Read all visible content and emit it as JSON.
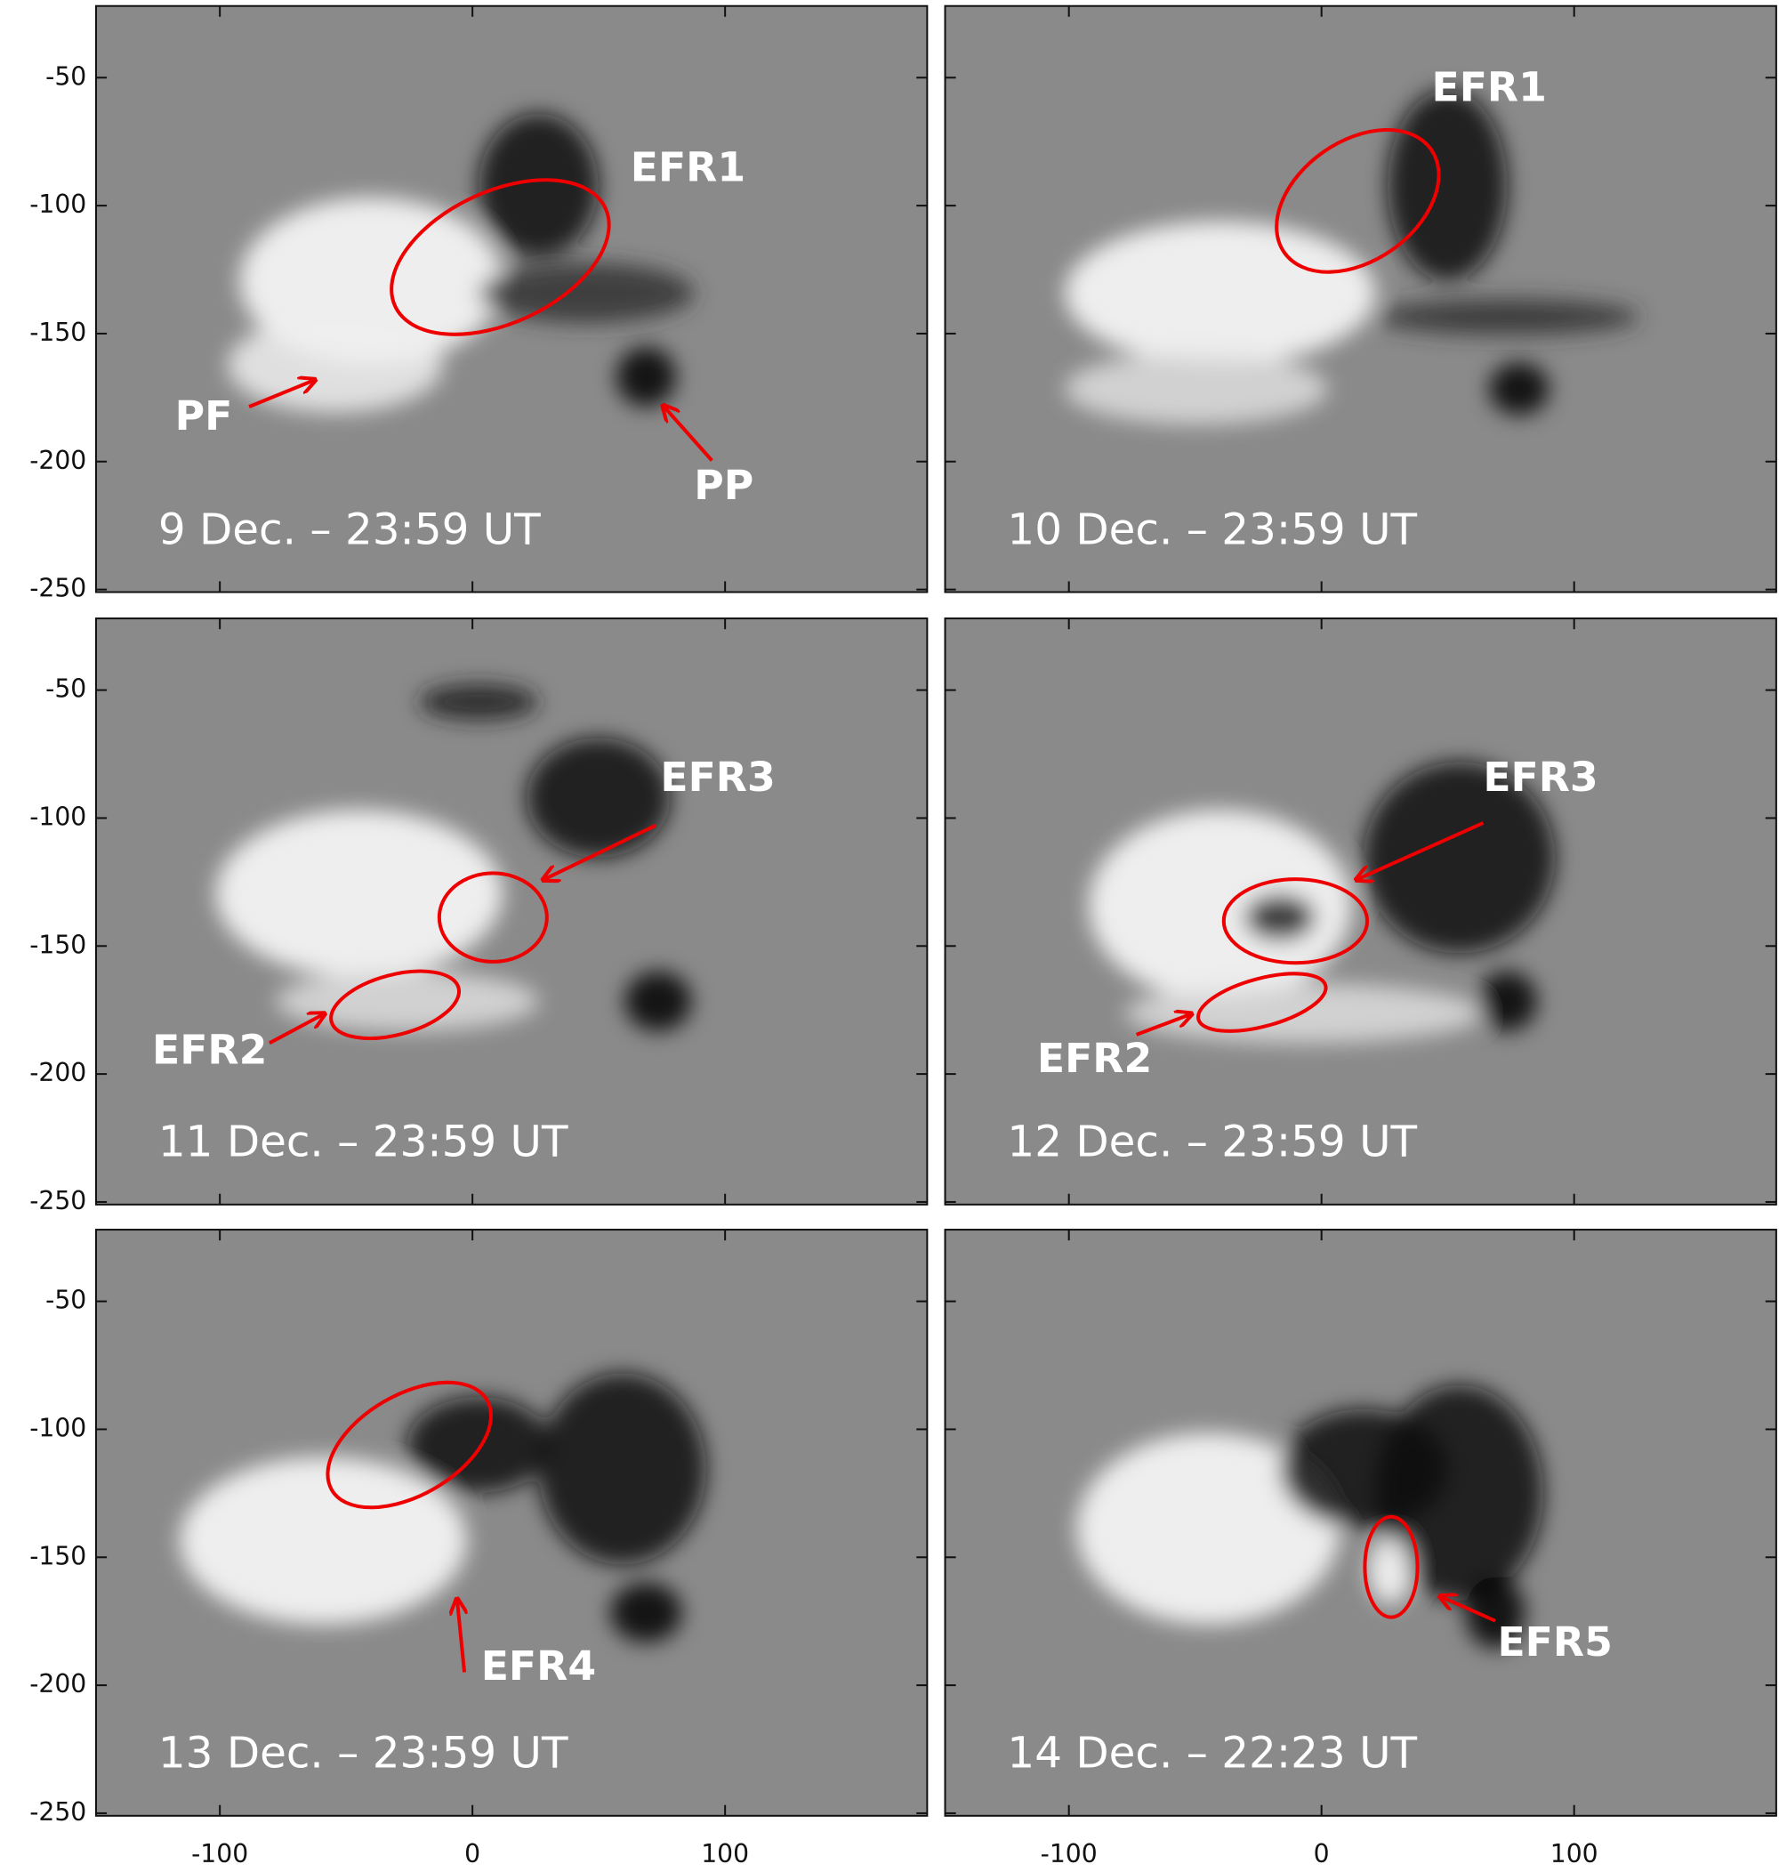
{
  "axes": {
    "xlim": [
      -149,
      180
    ],
    "ylim": [
      -22,
      -251
    ],
    "xticks": [
      -100,
      0,
      100
    ],
    "yticks": [
      -50,
      -100,
      -150,
      -200,
      -250
    ]
  },
  "panels": [
    {
      "label": "9 Dec. – 23:59 UT",
      "annotations": [
        "EFR1",
        "PF",
        "PP"
      ]
    },
    {
      "label": "10 Dec. – 23:59 UT",
      "annotations": [
        "EFR1"
      ]
    },
    {
      "label": "11 Dec. – 23:59 UT",
      "annotations": [
        "EFR3",
        "EFR2"
      ]
    },
    {
      "label": "12 Dec. – 23:59 UT",
      "annotations": [
        "EFR3",
        "EFR2"
      ]
    },
    {
      "label": "13 Dec. – 23:59 UT",
      "annotations": [
        "EFR4"
      ]
    },
    {
      "label": "14 Dec. – 22:23 UT",
      "annotations": [
        "EFR5"
      ]
    }
  ]
}
